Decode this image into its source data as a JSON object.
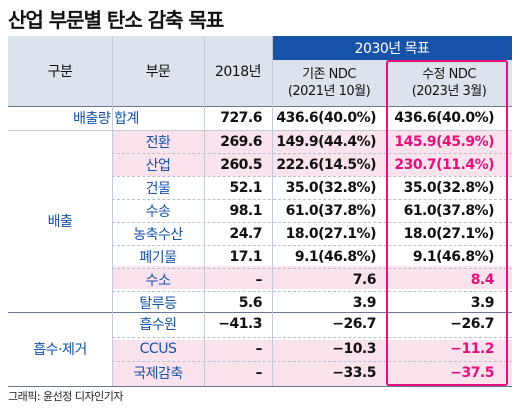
{
  "title": "산업 부문별 탄소 감축 목표",
  "credit": "그래픽: 윤선정 디자인기자",
  "colors": {
    "header_bg": "#dde3ec",
    "blue_header": "#1652a8",
    "label_blue": "#1652a8",
    "accent_magenta": "#e6107a",
    "pink_row": "#fbe3ee"
  },
  "header": {
    "col_group": "구분",
    "col_sector": "부문",
    "col_2018": "2018년",
    "target_2030": "2030년 목표",
    "existing_ndc": "기존 NDC",
    "existing_ndc_date": "(2021년 10월)",
    "revised_ndc": "수정 NDC",
    "revised_ndc_date": "(2023년 3월)"
  },
  "total": {
    "label": "배출량 합계",
    "v2018": "727.6",
    "existing": "436.6(40.0%)",
    "revised": "436.6(40.0%)"
  },
  "groups": {
    "emission": "배출",
    "absorption": "흡수·제거"
  },
  "rows": [
    {
      "sector": "전환",
      "v2018": "269.6",
      "existing": "149.9(44.4%)",
      "revised": "145.9(45.9%)"
    },
    {
      "sector": "산업",
      "v2018": "260.5",
      "existing": "222.6(14.5%)",
      "revised": "230.7(11.4%)"
    },
    {
      "sector": "건물",
      "v2018": "52.1",
      "existing": "35.0(32.8%)",
      "revised": "35.0(32.8%)"
    },
    {
      "sector": "수송",
      "v2018": "98.1",
      "existing": "61.0(37.8%)",
      "revised": "61.0(37.8%)"
    },
    {
      "sector": "농축수산",
      "v2018": "24.7",
      "existing": "18.0(27.1%)",
      "revised": "18.0(27.1%)"
    },
    {
      "sector": "폐기물",
      "v2018": "17.1",
      "existing": "9.1(46.8%)",
      "revised": "9.1(46.8%)"
    },
    {
      "sector": "수소",
      "v2018": "–",
      "existing": "7.6",
      "revised": "8.4"
    },
    {
      "sector": "탈루등",
      "v2018": "5.6",
      "existing": "3.9",
      "revised": "3.9"
    },
    {
      "sector": "흡수원",
      "v2018": "−41.3",
      "existing": "−26.7",
      "revised": "−26.7"
    },
    {
      "sector": "CCUS",
      "v2018": "–",
      "existing": "−10.3",
      "revised": "−11.2"
    },
    {
      "sector": "국제감축",
      "v2018": "–",
      "existing": "−33.5",
      "revised": "−37.5"
    }
  ]
}
